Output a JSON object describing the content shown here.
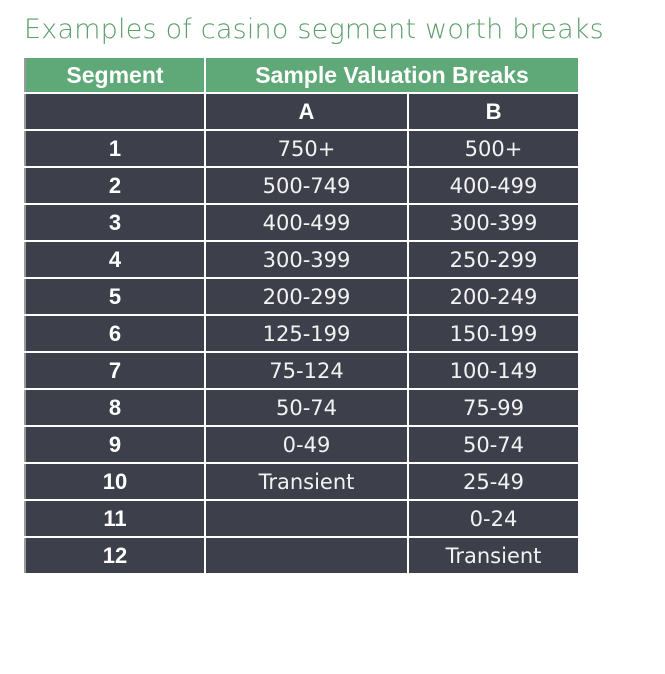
{
  "title": "Examples of casino segment worth breaks",
  "table": {
    "headers": {
      "segment": "Segment",
      "breaks": "Sample Valuation Breaks"
    },
    "subheaders": [
      "A",
      "B"
    ],
    "rows": [
      {
        "segment": "1",
        "a": "750+",
        "b": "500+"
      },
      {
        "segment": "2",
        "a": "500-749",
        "b": "400-499"
      },
      {
        "segment": "3",
        "a": "400-499",
        "b": "300-399"
      },
      {
        "segment": "4",
        "a": "300-399",
        "b": "250-299"
      },
      {
        "segment": "5",
        "a": "200-299",
        "b": "200-249"
      },
      {
        "segment": "6",
        "a": "125-199",
        "b": "150-199"
      },
      {
        "segment": "7",
        "a": "75-124",
        "b": "100-149"
      },
      {
        "segment": "8",
        "a": "50-74",
        "b": "75-99"
      },
      {
        "segment": "9",
        "a": "0-49",
        "b": "50-74"
      },
      {
        "segment": "10",
        "a": "Transient",
        "b": "25-49"
      },
      {
        "segment": "11",
        "a": "",
        "b": "0-24"
      },
      {
        "segment": "12",
        "a": "",
        "b": "Transient"
      }
    ]
  },
  "colors": {
    "title": "#5a9e6a",
    "header_bg": "#5fa878",
    "cell_bg": "#3d404b",
    "text": "#ffffff"
  }
}
